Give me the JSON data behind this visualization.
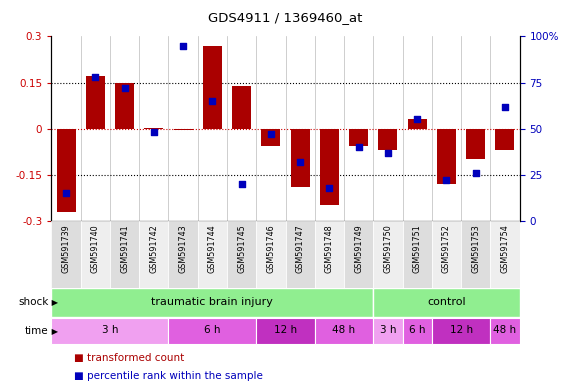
{
  "title": "GDS4911 / 1369460_at",
  "samples": [
    "GSM591739",
    "GSM591740",
    "GSM591741",
    "GSM591742",
    "GSM591743",
    "GSM591744",
    "GSM591745",
    "GSM591746",
    "GSM591747",
    "GSM591748",
    "GSM591749",
    "GSM591750",
    "GSM591751",
    "GSM591752",
    "GSM591753",
    "GSM591754"
  ],
  "transformed_count": [
    -0.27,
    0.17,
    0.15,
    0.003,
    -0.005,
    0.27,
    0.14,
    -0.055,
    -0.19,
    -0.25,
    -0.055,
    -0.07,
    0.03,
    -0.18,
    -0.1,
    -0.07
  ],
  "percentile_rank": [
    15,
    78,
    72,
    48,
    95,
    65,
    20,
    47,
    32,
    18,
    40,
    37,
    55,
    22,
    26,
    62
  ],
  "ylim_left": [
    -0.3,
    0.3
  ],
  "ylim_right": [
    0,
    100
  ],
  "yticks_left": [
    -0.3,
    -0.15,
    0,
    0.15,
    0.3
  ],
  "yticks_right": [
    0,
    25,
    50,
    75,
    100
  ],
  "bar_color": "#aa0000",
  "dot_color": "#0000bb",
  "shock_groups": [
    {
      "label": "traumatic brain injury",
      "start": 0,
      "end": 11,
      "color": "#90ee90"
    },
    {
      "label": "control",
      "start": 11,
      "end": 16,
      "color": "#90ee90"
    }
  ],
  "time_groups": [
    {
      "label": "3 h",
      "start": 0,
      "end": 4,
      "color": "#f0a0f0"
    },
    {
      "label": "6 h",
      "start": 4,
      "end": 7,
      "color": "#e060e0"
    },
    {
      "label": "12 h",
      "start": 7,
      "end": 9,
      "color": "#c030c0"
    },
    {
      "label": "48 h",
      "start": 9,
      "end": 11,
      "color": "#e060e0"
    },
    {
      "label": "3 h",
      "start": 11,
      "end": 12,
      "color": "#f0a0f0"
    },
    {
      "label": "6 h",
      "start": 12,
      "end": 13,
      "color": "#e060e0"
    },
    {
      "label": "12 h",
      "start": 13,
      "end": 15,
      "color": "#c030c0"
    },
    {
      "label": "48 h",
      "start": 15,
      "end": 16,
      "color": "#e060e0"
    }
  ],
  "legend_items": [
    {
      "label": "transformed count",
      "color": "#aa0000"
    },
    {
      "label": "percentile rank within the sample",
      "color": "#0000bb"
    }
  ],
  "label_row_shock": "shock",
  "label_row_time": "time",
  "sample_col_color_even": "#dddddd",
  "sample_col_color_odd": "#eeeeee",
  "bg_color": "#ffffff"
}
